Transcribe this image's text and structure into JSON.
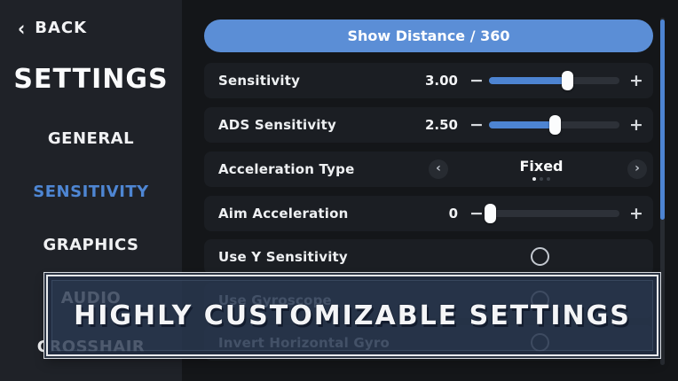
{
  "sidebar": {
    "back_icon": "‹",
    "back_label": "BACK",
    "title": "SETTINGS",
    "items": [
      {
        "label": "GENERAL",
        "active": false
      },
      {
        "label": "SENSITIVITY",
        "active": true
      },
      {
        "label": "GRAPHICS",
        "active": false
      },
      {
        "label": "AUDIO",
        "active": false
      },
      {
        "label": "CROSSHAIR",
        "active": false
      }
    ]
  },
  "panel": {
    "top_button_label": "Show Distance / 360",
    "minus_glyph": "−",
    "plus_glyph": "+",
    "prev_glyph": "‹",
    "next_glyph": "›",
    "rows": [
      {
        "type": "slider",
        "label": "Sensitivity",
        "value": "3.00",
        "fill_pct": 60
      },
      {
        "type": "slider",
        "label": "ADS Sensitivity",
        "value": "2.50",
        "fill_pct": 50
      },
      {
        "type": "stepper",
        "label": "Acceleration Type",
        "value": "Fixed",
        "dots_total": 3,
        "dots_active_index": 0
      },
      {
        "type": "slider",
        "label": "Aim Acceleration",
        "value": "0",
        "fill_pct": 1
      },
      {
        "type": "toggle",
        "label": "Use Y Sensitivity",
        "checked": false
      },
      {
        "type": "toggle",
        "label": "Use Gyroscope",
        "checked": false,
        "dimmed": true
      },
      {
        "type": "toggle",
        "label": "Invert Horizontal Gyro",
        "checked": false,
        "dimmed": true
      }
    ]
  },
  "overlay": {
    "banner_text": "HIGHLY CUSTOMIZABLE SETTINGS"
  },
  "colors": {
    "accent_blue": "#5b8ed6",
    "slider_blue": "#4d84d2",
    "active_nav_blue": "#4e86d3",
    "banner_navy": "#293851",
    "sidebar_bg": "#1f2228",
    "panel_bg": "#141619",
    "row_bg": "#1b1e23"
  }
}
